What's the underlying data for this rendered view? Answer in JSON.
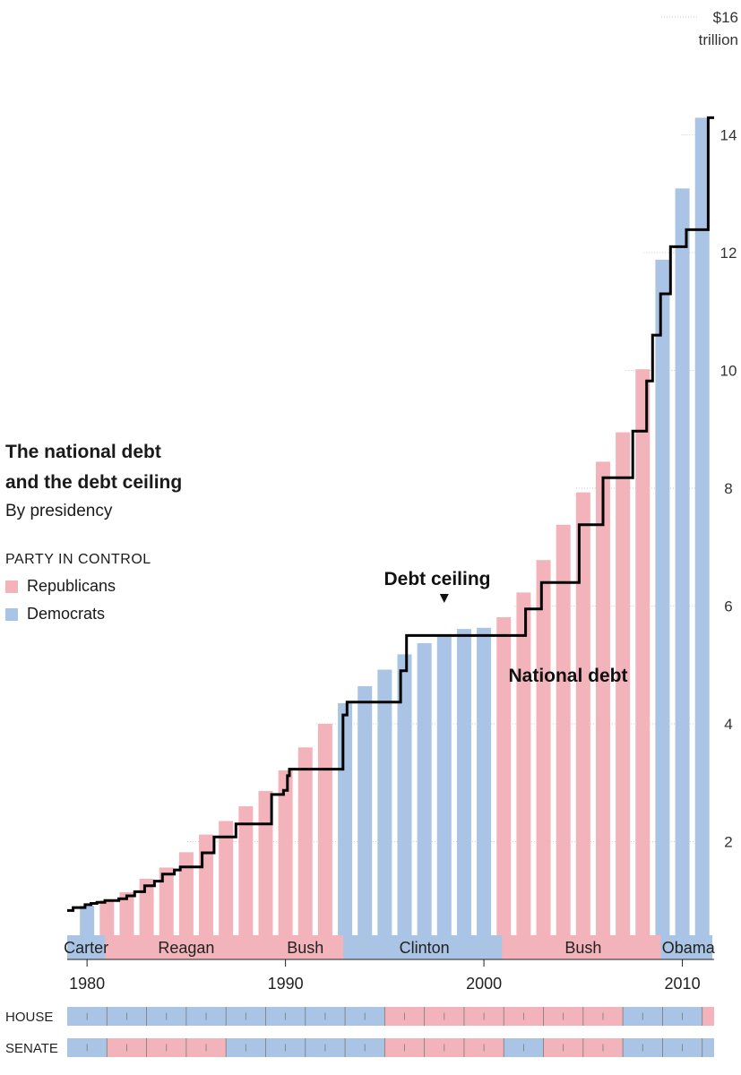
{
  "title_line1": "The national debt",
  "title_line2": "and the debt ceiling",
  "subtitle": "By presidency",
  "legend": {
    "heading": "PARTY IN CONTROL",
    "republicans": "Republicans",
    "democrats": "Democrats"
  },
  "colors": {
    "republican": "#f2b4ba",
    "democrat": "#a9c4e4",
    "ceiling": "#000000"
  },
  "chart_data": {
    "type": "bar",
    "title": "The national debt and the debt ceiling",
    "subtitle": "By presidency",
    "ylabel": "$ trillion",
    "ylim": [
      0,
      16
    ],
    "xlim": [
      1979.0,
      2011.6
    ],
    "y_ticks": [
      2,
      4,
      6,
      8,
      10,
      12,
      14
    ],
    "y_tick_labels": [
      "2",
      "4",
      "6",
      "8",
      "10",
      "12",
      "14"
    ],
    "y_top_label": [
      "$16",
      "trillion"
    ],
    "x_ticks": [
      1980,
      1990,
      2000,
      2010
    ],
    "x_tick_labels": [
      "1980",
      "1990",
      "2000",
      "2010"
    ],
    "series": [
      {
        "name": "National debt",
        "label": "National debt",
        "x": [
          1980,
          1981,
          1982,
          1983,
          1984,
          1985,
          1986,
          1987,
          1988,
          1989,
          1990,
          1991,
          1992,
          1993,
          1994,
          1995,
          1996,
          1997,
          1998,
          1999,
          2000,
          2001,
          2002,
          2003,
          2004,
          2005,
          2006,
          2007,
          2008,
          2009,
          2010,
          2011
        ],
        "values": [
          0.91,
          1.0,
          1.14,
          1.37,
          1.56,
          1.82,
          2.12,
          2.35,
          2.6,
          2.86,
          3.21,
          3.6,
          4.0,
          4.35,
          4.64,
          4.92,
          5.18,
          5.37,
          5.48,
          5.61,
          5.63,
          5.81,
          6.23,
          6.78,
          7.38,
          7.93,
          8.45,
          8.95,
          10.02,
          11.88,
          13.09,
          14.29
        ],
        "party": [
          "D",
          "R",
          "R",
          "R",
          "R",
          "R",
          "R",
          "R",
          "R",
          "R",
          "R",
          "R",
          "R",
          "D",
          "D",
          "D",
          "D",
          "D",
          "D",
          "D",
          "D",
          "R",
          "R",
          "R",
          "R",
          "R",
          "R",
          "R",
          "R",
          "D",
          "D",
          "D"
        ]
      },
      {
        "name": "Debt ceiling",
        "label": "Debt ceiling",
        "type": "step",
        "x": [
          1979.0,
          1979.3,
          1979.9,
          1980.2,
          1980.5,
          1980.9,
          1981.6,
          1982.0,
          1982.4,
          1982.9,
          1983.4,
          1983.8,
          1984.4,
          1984.7,
          1985.8,
          1986.4,
          1987.5,
          1989.3,
          1989.9,
          1990.1,
          1990.2,
          1992.9,
          1993.1,
          1995.8,
          1996.1,
          2002.1,
          2002.9,
          2004.8,
          2006.0,
          2007.5,
          2008.2,
          2008.5,
          2008.9,
          2009.4,
          2010.2,
          2011.3
        ],
        "values": [
          0.83,
          0.88,
          0.93,
          0.95,
          0.97,
          1.0,
          1.03,
          1.08,
          1.15,
          1.25,
          1.33,
          1.45,
          1.52,
          1.57,
          1.81,
          2.08,
          2.3,
          2.8,
          2.87,
          3.12,
          3.23,
          4.15,
          4.37,
          4.9,
          5.5,
          5.95,
          6.4,
          7.38,
          8.18,
          8.97,
          9.82,
          10.6,
          11.3,
          12.1,
          12.39,
          14.29
        ],
        "end_x": 2011.6
      }
    ],
    "presidents": [
      {
        "name": "Carter",
        "start": 1979.0,
        "end": 1981.0,
        "party": "D"
      },
      {
        "name": "Reagan",
        "start": 1981.0,
        "end": 1989.0,
        "party": "R"
      },
      {
        "name": "Bush",
        "start": 1989.0,
        "end": 1993.0,
        "party": "R"
      },
      {
        "name": "Clinton",
        "start": 1993.0,
        "end": 2001.0,
        "party": "D"
      },
      {
        "name": "Bush",
        "start": 2001.0,
        "end": 2009.0,
        "party": "R"
      },
      {
        "name": "Obama",
        "start": 2009.0,
        "end": 2011.6,
        "party": "D"
      }
    ],
    "congress": [
      {
        "label": "HOUSE",
        "segments": [
          {
            "start": 1979.0,
            "end": 1995.0,
            "party": "D"
          },
          {
            "start": 1995.0,
            "end": 2007.0,
            "party": "R"
          },
          {
            "start": 2007.0,
            "end": 2011.0,
            "party": "D"
          },
          {
            "start": 2011.0,
            "end": 2011.6,
            "party": "R"
          }
        ]
      },
      {
        "label": "SENATE",
        "segments": [
          {
            "start": 1979.0,
            "end": 1981.0,
            "party": "D"
          },
          {
            "start": 1981.0,
            "end": 1987.0,
            "party": "R"
          },
          {
            "start": 1987.0,
            "end": 1995.0,
            "party": "D"
          },
          {
            "start": 1995.0,
            "end": 2001.0,
            "party": "R"
          },
          {
            "start": 2001.0,
            "end": 2003.0,
            "party": "D"
          },
          {
            "start": 2003.0,
            "end": 2007.0,
            "party": "R"
          },
          {
            "start": 2007.0,
            "end": 2011.6,
            "party": "D"
          }
        ]
      }
    ],
    "annotations": {
      "debt_ceiling_label": "Debt ceiling",
      "debt_ceiling_arrow_x": 1998.0,
      "national_debt_label": "National debt"
    }
  }
}
